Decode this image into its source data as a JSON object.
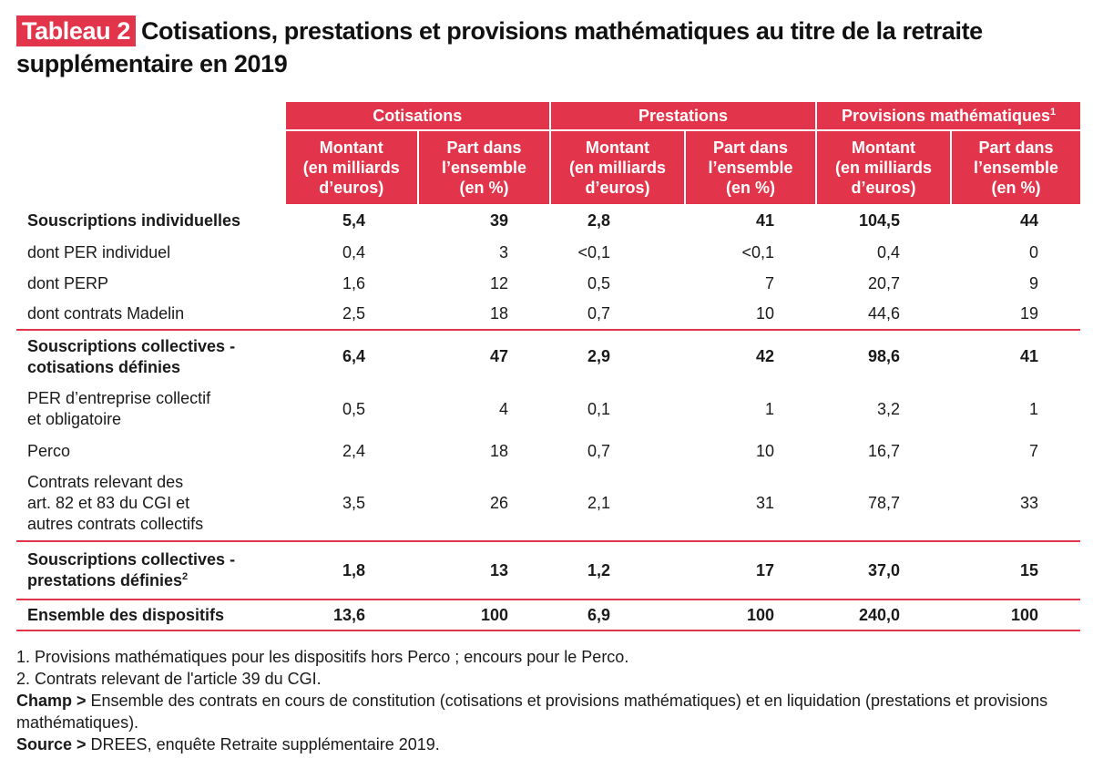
{
  "title": {
    "tag": "Tableau 2",
    "text": "Cotisations, prestations et provisions mathématiques au titre de la retraite supplémentaire en 2019"
  },
  "table": {
    "groups": [
      "Cotisations",
      "Prestations",
      "Provisions mathématiques"
    ],
    "group_sup": "1",
    "subheaders": {
      "montant": [
        "Montant",
        "(en milliards",
        "d’euros)"
      ],
      "part": [
        "Part dans",
        "l’ensemble",
        "(en %)"
      ]
    },
    "rows": [
      {
        "label": "Souscriptions individuelles",
        "values": [
          "5,4",
          "39",
          "2,8",
          "41",
          "104,5",
          "44"
        ]
      },
      {
        "label": "dont PER individuel",
        "values": [
          "0,4",
          "3",
          "<0,1",
          "<0,1",
          "0,4",
          "0"
        ]
      },
      {
        "label": "dont PERP",
        "values": [
          "1,6",
          "12",
          "0,5",
          "7",
          "20,7",
          "9"
        ]
      },
      {
        "label": "dont contrats Madelin",
        "values": [
          "2,5",
          "18",
          "0,7",
          "10",
          "44,6",
          "19"
        ]
      },
      {
        "label_lines": [
          "Souscriptions collectives -",
          "cotisations définies"
        ],
        "values": [
          "6,4",
          "47",
          "2,9",
          "42",
          "98,6",
          "41"
        ]
      },
      {
        "label_lines": [
          "PER d’entreprise collectif",
          "et obligatoire"
        ],
        "values": [
          "0,5",
          "4",
          "0,1",
          "1",
          "3,2",
          "1"
        ]
      },
      {
        "label": "Perco",
        "values": [
          "2,4",
          "18",
          "0,7",
          "10",
          "16,7",
          "7"
        ]
      },
      {
        "label_lines": [
          "Contrats relevant des",
          "art. 82 et 83 du CGI et",
          "autres contrats collectifs"
        ],
        "values": [
          "3,5",
          "26",
          "2,1",
          "31",
          "78,7",
          "33"
        ]
      },
      {
        "label_lines": [
          "Souscriptions collectives -",
          "prestations définies"
        ],
        "label_sup": "2",
        "values": [
          "1,8",
          "13",
          "1,2",
          "17",
          "37,0",
          "15"
        ]
      },
      {
        "label": "Ensemble des dispositifs",
        "values": [
          "13,6",
          "100",
          "6,9",
          "100",
          "240,0",
          "100"
        ]
      }
    ]
  },
  "notes": {
    "note1": "1. Provisions mathématiques pour les dispositifs hors Perco ; encours pour le Perco.",
    "note2": "2. Contrats relevant de l'article 39 du CGI.",
    "champ_label": "Champ >",
    "champ_text": " Ensemble des contrats en cours de constitution (cotisations et provisions mathématiques) et en liquidation (prestations et provisions mathématiques).",
    "source_label": "Source >",
    "source_text": " DREES, enquête Retraite supplémentaire 2019."
  },
  "colors": {
    "accent": "#e2344a"
  }
}
